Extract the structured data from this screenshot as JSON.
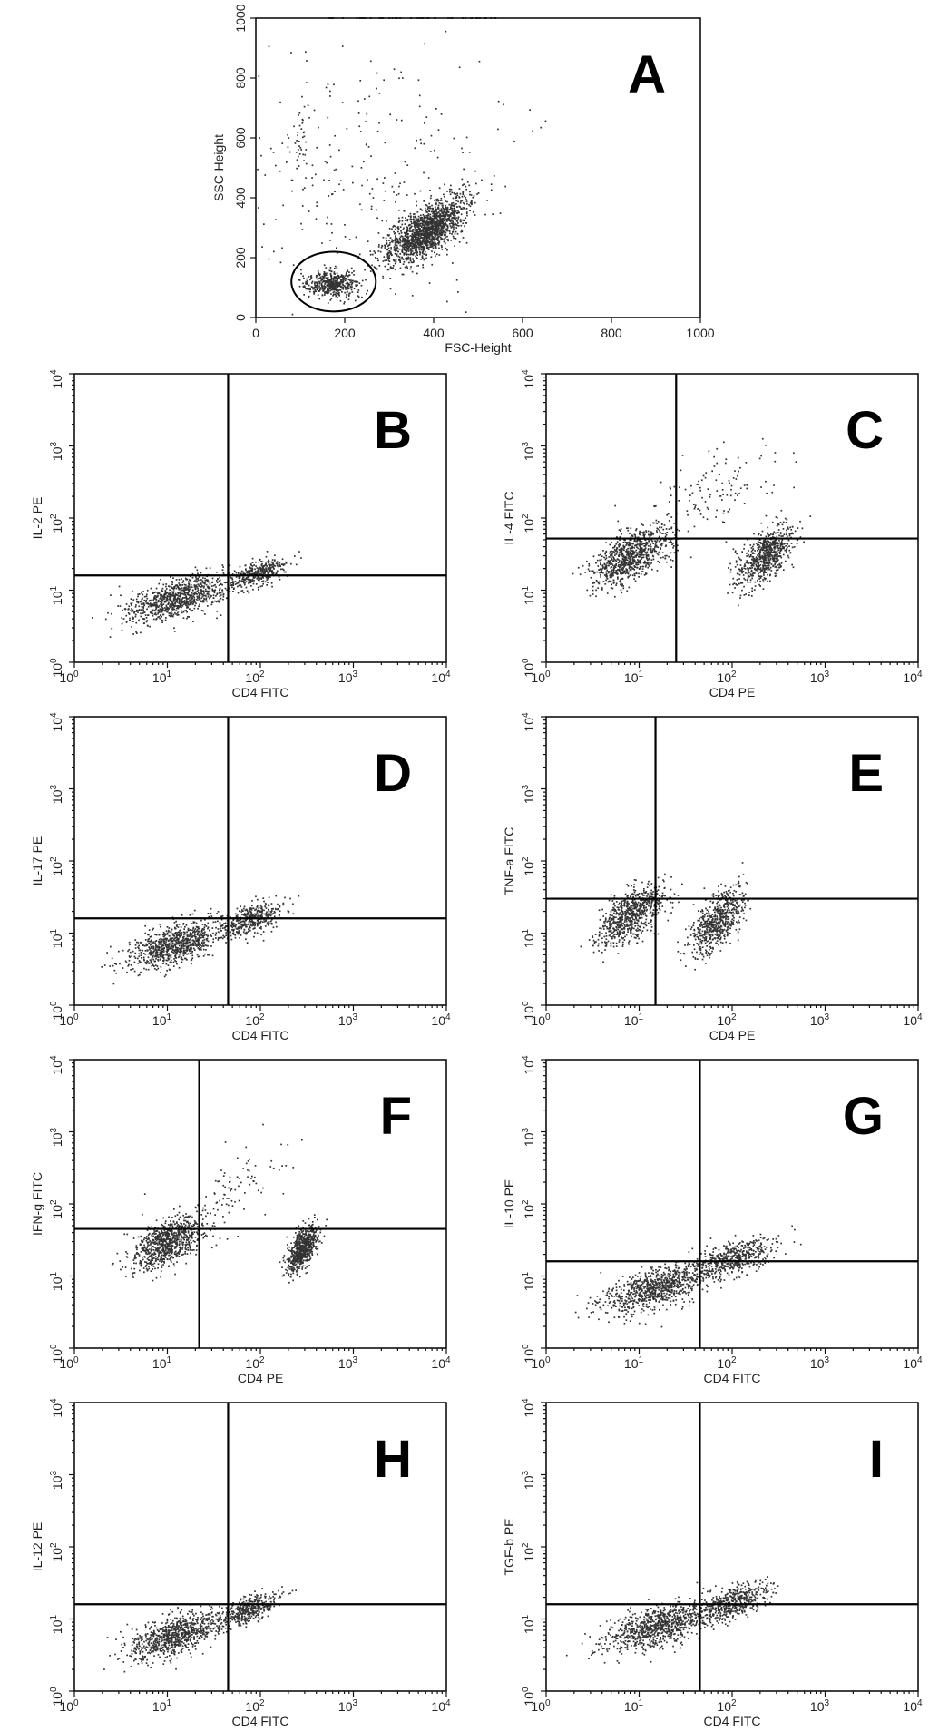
{
  "chart_data": [
    {
      "type": "scatter",
      "panel": "A",
      "xlabel": "FSC-Height",
      "ylabel": "SSC-Height",
      "xlim": [
        0,
        1000
      ],
      "ylim": [
        0,
        1000
      ],
      "xticks": [
        "0",
        "200",
        "400",
        "600",
        "800",
        "1000"
      ],
      "yticks": [
        "0",
        "200",
        "400",
        "600",
        "800",
        "1000"
      ],
      "scale": "linear",
      "gate": {
        "shape": "circle",
        "cx": 175,
        "cy": 120,
        "r": 95
      },
      "populations": [
        {
          "cx": 170,
          "cy": 115,
          "sx": 28,
          "sy": 22,
          "n": 520
        },
        {
          "cx": 380,
          "cy": 290,
          "sx": 45,
          "sy": 55,
          "n": 1600,
          "tilt": 0.7
        },
        {
          "cx": 100,
          "cy": 600,
          "sx": 12,
          "sy": 60,
          "n": 35
        },
        {
          "cx": 260,
          "cy": 500,
          "sx": 150,
          "sy": 220,
          "n": 260
        }
      ]
    },
    {
      "type": "scatter",
      "panel": "B",
      "xlabel": "CD4 FITC",
      "ylabel": "IL-2 PE",
      "scale": "log",
      "xlim": [
        1,
        10000
      ],
      "ylim": [
        1,
        10000
      ],
      "quadrant": {
        "x": 45,
        "y": 16
      },
      "populations": [
        {
          "cx": 13,
          "cy": 8,
          "sx": 0.28,
          "sy": 0.18,
          "n": 900
        },
        {
          "cx": 90,
          "cy": 17,
          "sx": 0.16,
          "sy": 0.12,
          "n": 380
        }
      ]
    },
    {
      "type": "scatter",
      "panel": "C",
      "xlabel": "CD4 PE",
      "ylabel": "IL-4 FITC",
      "scale": "log",
      "xlim": [
        1,
        10000
      ],
      "ylim": [
        1,
        10000
      ],
      "quadrant": {
        "x": 25,
        "y": 52
      },
      "populations": [
        {
          "cx": 8,
          "cy": 30,
          "sx": 0.22,
          "sy": 0.22,
          "n": 850
        },
        {
          "cx": 220,
          "cy": 30,
          "sx": 0.15,
          "sy": 0.22,
          "n": 700
        },
        {
          "cx": 60,
          "cy": 250,
          "sx": 0.35,
          "sy": 0.35,
          "n": 120
        }
      ]
    },
    {
      "type": "scatter",
      "panel": "D",
      "xlabel": "CD4 FITC",
      "ylabel": "IL-17 PE",
      "scale": "log",
      "xlim": [
        1,
        10000
      ],
      "ylim": [
        1,
        10000
      ],
      "quadrant": {
        "x": 45,
        "y": 16
      },
      "populations": [
        {
          "cx": 12,
          "cy": 7,
          "sx": 0.25,
          "sy": 0.17,
          "n": 850
        },
        {
          "cx": 80,
          "cy": 16,
          "sx": 0.17,
          "sy": 0.13,
          "n": 420
        }
      ]
    },
    {
      "type": "scatter",
      "panel": "E",
      "xlabel": "CD4 PE",
      "ylabel": "TNF-a FITC",
      "scale": "log",
      "xlim": [
        1,
        10000
      ],
      "ylim": [
        1,
        10000
      ],
      "quadrant": {
        "x": 15,
        "y": 30
      },
      "populations": [
        {
          "cx": 8,
          "cy": 18,
          "sx": 0.18,
          "sy": 0.22,
          "n": 750
        },
        {
          "cx": 70,
          "cy": 15,
          "sx": 0.14,
          "sy": 0.25,
          "n": 650
        }
      ]
    },
    {
      "type": "scatter",
      "panel": "F",
      "xlabel": "CD4 PE",
      "ylabel": "IFN-g FITC",
      "scale": "log",
      "xlim": [
        1,
        10000
      ],
      "ylim": [
        1,
        10000
      ],
      "quadrant": {
        "x": 22,
        "y": 45
      },
      "populations": [
        {
          "cx": 10,
          "cy": 30,
          "sx": 0.2,
          "sy": 0.2,
          "n": 850
        },
        {
          "cx": 280,
          "cy": 25,
          "sx": 0.08,
          "sy": 0.18,
          "n": 650
        },
        {
          "cx": 60,
          "cy": 200,
          "sx": 0.35,
          "sy": 0.35,
          "n": 90
        }
      ]
    },
    {
      "type": "scatter",
      "panel": "G",
      "xlabel": "CD4 FITC",
      "ylabel": "IL-10 PE",
      "scale": "log",
      "xlim": [
        1,
        10000
      ],
      "ylim": [
        1,
        10000
      ],
      "quadrant": {
        "x": 45,
        "y": 16
      },
      "populations": [
        {
          "cx": 15,
          "cy": 7,
          "sx": 0.28,
          "sy": 0.18,
          "n": 850
        },
        {
          "cx": 100,
          "cy": 18,
          "sx": 0.22,
          "sy": 0.15,
          "n": 500
        }
      ]
    },
    {
      "type": "scatter",
      "panel": "H",
      "xlabel": "CD4 FITC",
      "ylabel": "IL-12 PE",
      "scale": "log",
      "xlim": [
        1,
        10000
      ],
      "ylim": [
        1,
        10000
      ],
      "quadrant": {
        "x": 45,
        "y": 16
      },
      "populations": [
        {
          "cx": 12,
          "cy": 6,
          "sx": 0.25,
          "sy": 0.17,
          "n": 850
        },
        {
          "cx": 75,
          "cy": 14,
          "sx": 0.15,
          "sy": 0.12,
          "n": 380
        }
      ]
    },
    {
      "type": "scatter",
      "panel": "I",
      "xlabel": "CD4 FITC",
      "ylabel": "TGF-b PE",
      "scale": "log",
      "xlim": [
        1,
        10000
      ],
      "ylim": [
        1,
        10000
      ],
      "quadrant": {
        "x": 45,
        "y": 16
      },
      "populations": [
        {
          "cx": 15,
          "cy": 8,
          "sx": 0.27,
          "sy": 0.19,
          "n": 850
        },
        {
          "cx": 100,
          "cy": 17,
          "sx": 0.2,
          "sy": 0.15,
          "n": 480
        }
      ]
    }
  ]
}
